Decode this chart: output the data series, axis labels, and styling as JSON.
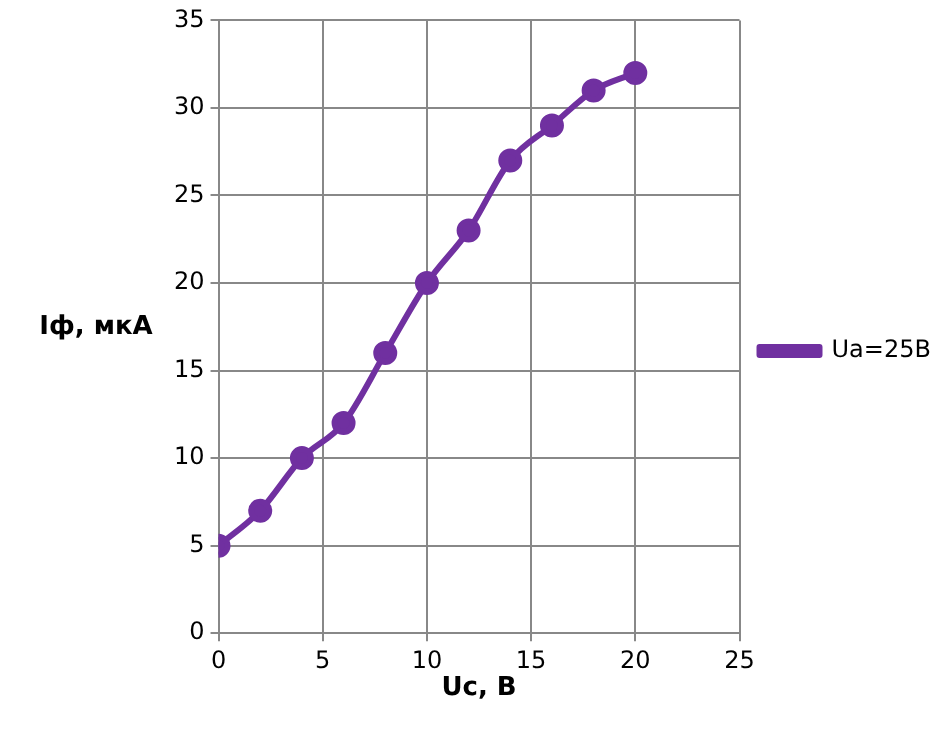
{
  "chart_data": {
    "type": "line",
    "xlabel": "Uc, B",
    "ylabel": "Iф, мкА",
    "x": [
      0,
      2,
      4,
      6,
      8,
      10,
      12,
      14,
      16,
      18,
      20
    ],
    "series": [
      {
        "name": "Ua=25B",
        "color": "#7030a0",
        "values": [
          5,
          7,
          10,
          12,
          16,
          20,
          23,
          27,
          29,
          31,
          32
        ]
      }
    ],
    "xlim": [
      0,
      25
    ],
    "xticks": [
      0,
      5,
      10,
      15,
      20,
      25
    ],
    "ylim": [
      0,
      35
    ],
    "yticks": [
      0,
      5,
      10,
      15,
      20,
      25,
      30,
      35
    ],
    "grid": true,
    "legend": "right",
    "marker": "circle",
    "line_style": "solid"
  }
}
